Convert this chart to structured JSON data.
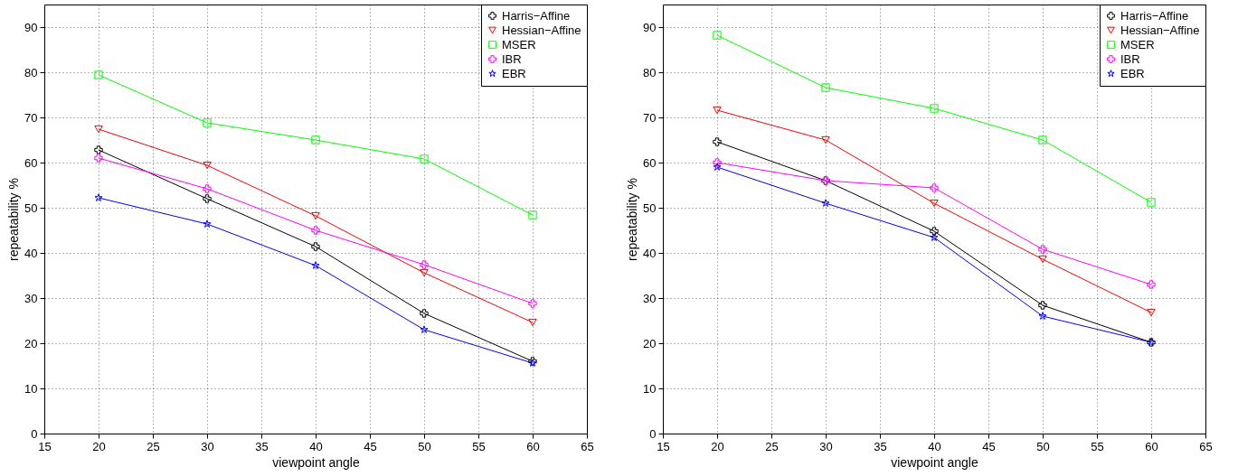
{
  "chart_data": [
    {
      "type": "line",
      "xlabel": "viewpoint angle",
      "ylabel": "repeatability %",
      "x": [
        20,
        30,
        40,
        50,
        60
      ],
      "xlim": [
        15,
        65
      ],
      "xticks": [
        15,
        20,
        25,
        30,
        35,
        40,
        45,
        50,
        55,
        60,
        65
      ],
      "ylim": [
        0,
        95
      ],
      "yticks": [
        0,
        10,
        20,
        30,
        40,
        50,
        60,
        70,
        80,
        90
      ],
      "grid": true,
      "legend": "top right",
      "line_style": "solid",
      "series": [
        {
          "name": "Harris−Affine",
          "color": "#000000",
          "marker": "cross",
          "values": [
            62.8,
            52,
            41.4,
            26.6,
            16
          ]
        },
        {
          "name": "Hessian−Affine",
          "color": "#ff0000",
          "marker": "triangle",
          "values": [
            67.4,
            59.4,
            48.2,
            35.6,
            24.6
          ]
        },
        {
          "name": "MSER",
          "color": "#00ff00",
          "marker": "square",
          "values": [
            79.4,
            68.8,
            65,
            60.8,
            48.4
          ]
        },
        {
          "name": "IBR",
          "color": "#ff00ff",
          "marker": "cross",
          "values": [
            61,
            54.2,
            45,
            37.4,
            28.8
          ]
        },
        {
          "name": "EBR",
          "color": "#0000ff",
          "marker": "star",
          "values": [
            52.2,
            46.4,
            37.2,
            23,
            15.6
          ]
        }
      ]
    },
    {
      "type": "line",
      "xlabel": "viewpoint angle",
      "ylabel": "repeatability %",
      "x": [
        20,
        30,
        40,
        50,
        60
      ],
      "xlim": [
        15,
        65
      ],
      "xticks": [
        15,
        20,
        25,
        30,
        35,
        40,
        45,
        50,
        55,
        60,
        65
      ],
      "ylim": [
        0,
        95
      ],
      "yticks": [
        0,
        10,
        20,
        30,
        40,
        50,
        60,
        70,
        80,
        90
      ],
      "grid": true,
      "legend": "top right",
      "line_style": "solid",
      "series": [
        {
          "name": "Harris−Affine",
          "color": "#000000",
          "marker": "cross",
          "values": [
            64.6,
            56,
            44.8,
            28.4,
            20.2
          ]
        },
        {
          "name": "Hessian−Affine",
          "color": "#ff0000",
          "marker": "triangle",
          "values": [
            71.6,
            65,
            51,
            38.6,
            26.8
          ]
        },
        {
          "name": "MSER",
          "color": "#00ff00",
          "marker": "square",
          "values": [
            88.2,
            76.6,
            72,
            65,
            51.2
          ]
        },
        {
          "name": "IBR",
          "color": "#ff00ff",
          "marker": "cross",
          "values": [
            60,
            56,
            54.4,
            40.8,
            33
          ]
        },
        {
          "name": "EBR",
          "color": "#0000ff",
          "marker": "star",
          "values": [
            59,
            51,
            43.4,
            26,
            20.2
          ]
        }
      ]
    }
  ]
}
